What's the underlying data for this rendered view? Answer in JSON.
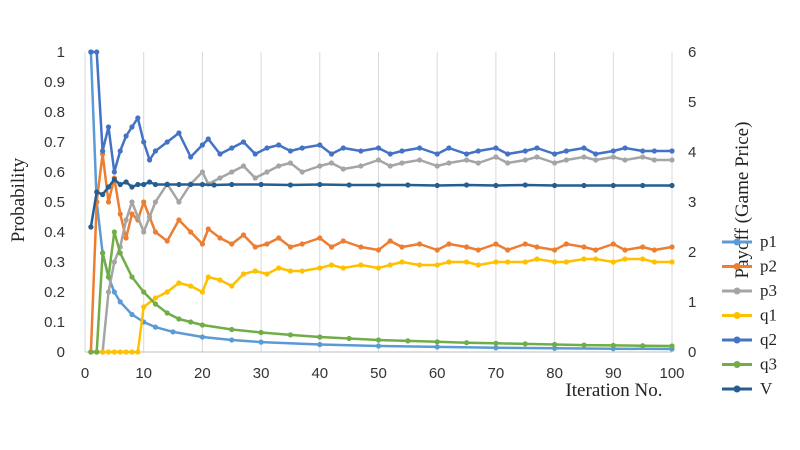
{
  "chart_data": {
    "type": "line",
    "xlabel": "Iteration No.",
    "ylabel_left": "Probability",
    "ylabel_right": "Payoff (Game Price)",
    "xlim": [
      0,
      100
    ],
    "ylim_left": [
      0,
      1
    ],
    "ylim_right": [
      0,
      6
    ],
    "x_ticks": [
      "0",
      "10",
      "20",
      "30",
      "40",
      "50",
      "60",
      "70",
      "80",
      "90",
      "100"
    ],
    "y_left_ticks": [
      "0",
      "0.1",
      "0.2",
      "0.3",
      "0.4",
      "0.5",
      "0.6",
      "0.7",
      "0.8",
      "0.9",
      "1"
    ],
    "y_right_ticks": [
      "0",
      "1",
      "2",
      "3",
      "4",
      "5",
      "6"
    ],
    "grid": "vertical",
    "legend_position": "right",
    "series": [
      {
        "name": "p1",
        "axis": "left",
        "color": "#5b9bd5",
        "x": [
          1,
          2,
          3,
          4,
          5,
          6,
          8,
          10,
          12,
          15,
          20,
          25,
          30,
          40,
          50,
          60,
          70,
          80,
          90,
          100
        ],
        "y": [
          1,
          0.5,
          0.33,
          0.25,
          0.2,
          0.167,
          0.125,
          0.1,
          0.083,
          0.067,
          0.05,
          0.04,
          0.033,
          0.025,
          0.02,
          0.017,
          0.014,
          0.0125,
          0.011,
          0.01
        ]
      },
      {
        "name": "p2",
        "axis": "left",
        "color": "#ed7d31",
        "x": [
          1,
          2,
          3,
          4,
          5,
          6,
          7,
          8,
          9,
          10,
          11,
          12,
          14,
          16,
          18,
          20,
          21,
          23,
          25,
          27,
          29,
          31,
          33,
          35,
          37,
          40,
          42,
          44,
          47,
          50,
          52,
          54,
          57,
          60,
          62,
          65,
          67,
          70,
          72,
          75,
          77,
          80,
          82,
          85,
          87,
          90,
          92,
          95,
          97,
          100
        ],
        "y": [
          0,
          0.5,
          0.66,
          0.5,
          0.58,
          0.46,
          0.38,
          0.46,
          0.44,
          0.5,
          0.45,
          0.4,
          0.37,
          0.44,
          0.4,
          0.36,
          0.41,
          0.38,
          0.36,
          0.39,
          0.35,
          0.36,
          0.38,
          0.35,
          0.36,
          0.38,
          0.35,
          0.37,
          0.35,
          0.34,
          0.37,
          0.35,
          0.36,
          0.34,
          0.36,
          0.35,
          0.34,
          0.36,
          0.34,
          0.36,
          0.35,
          0.34,
          0.36,
          0.35,
          0.34,
          0.36,
          0.34,
          0.35,
          0.34,
          0.35
        ]
      },
      {
        "name": "p3",
        "axis": "left",
        "color": "#a5a5a5",
        "x": [
          1,
          2,
          3,
          4,
          5,
          6,
          7,
          8,
          9,
          10,
          11,
          12,
          14,
          16,
          18,
          20,
          21,
          23,
          25,
          27,
          29,
          31,
          33,
          35,
          37,
          40,
          42,
          44,
          47,
          50,
          52,
          54,
          57,
          60,
          62,
          65,
          67,
          70,
          72,
          75,
          77,
          80,
          82,
          85,
          87,
          90,
          92,
          95,
          97,
          100
        ],
        "y": [
          0,
          0,
          0,
          0.2,
          0.3,
          0.35,
          0.44,
          0.5,
          0.45,
          0.4,
          0.45,
          0.5,
          0.56,
          0.5,
          0.56,
          0.6,
          0.56,
          0.58,
          0.6,
          0.62,
          0.58,
          0.6,
          0.62,
          0.63,
          0.6,
          0.62,
          0.63,
          0.61,
          0.62,
          0.64,
          0.62,
          0.63,
          0.64,
          0.62,
          0.63,
          0.64,
          0.63,
          0.65,
          0.63,
          0.64,
          0.65,
          0.63,
          0.64,
          0.65,
          0.64,
          0.65,
          0.64,
          0.65,
          0.64,
          0.64
        ]
      },
      {
        "name": "q1",
        "axis": "left",
        "color": "#ffc000",
        "x": [
          1,
          2,
          3,
          4,
          5,
          6,
          7,
          8,
          9,
          10,
          12,
          14,
          16,
          18,
          20,
          21,
          23,
          25,
          27,
          29,
          31,
          33,
          35,
          37,
          40,
          42,
          44,
          47,
          50,
          52,
          54,
          57,
          60,
          62,
          65,
          67,
          70,
          72,
          75,
          77,
          80,
          82,
          85,
          87,
          90,
          92,
          95,
          97,
          100
        ],
        "y": [
          0,
          0,
          0,
          0,
          0,
          0,
          0,
          0,
          0,
          0.15,
          0.18,
          0.2,
          0.23,
          0.22,
          0.2,
          0.25,
          0.24,
          0.22,
          0.26,
          0.27,
          0.26,
          0.28,
          0.27,
          0.27,
          0.28,
          0.29,
          0.28,
          0.29,
          0.28,
          0.29,
          0.3,
          0.29,
          0.29,
          0.3,
          0.3,
          0.29,
          0.3,
          0.3,
          0.3,
          0.31,
          0.3,
          0.3,
          0.31,
          0.31,
          0.3,
          0.31,
          0.31,
          0.3,
          0.3
        ]
      },
      {
        "name": "q2",
        "axis": "left",
        "color": "#4472c4",
        "x": [
          1,
          2,
          3,
          4,
          5,
          6,
          7,
          8,
          9,
          10,
          11,
          12,
          14,
          16,
          18,
          20,
          21,
          23,
          25,
          27,
          29,
          31,
          33,
          35,
          37,
          40,
          42,
          44,
          47,
          50,
          52,
          54,
          57,
          60,
          62,
          65,
          67,
          70,
          72,
          75,
          77,
          80,
          82,
          85,
          87,
          90,
          92,
          95,
          97,
          100
        ],
        "y": [
          1,
          1,
          0.67,
          0.75,
          0.6,
          0.67,
          0.72,
          0.75,
          0.78,
          0.7,
          0.64,
          0.67,
          0.7,
          0.73,
          0.65,
          0.69,
          0.71,
          0.66,
          0.68,
          0.7,
          0.66,
          0.68,
          0.69,
          0.67,
          0.68,
          0.69,
          0.66,
          0.68,
          0.67,
          0.68,
          0.66,
          0.67,
          0.68,
          0.66,
          0.68,
          0.66,
          0.67,
          0.68,
          0.66,
          0.67,
          0.68,
          0.66,
          0.67,
          0.68,
          0.66,
          0.67,
          0.68,
          0.67,
          0.67,
          0.67
        ]
      },
      {
        "name": "q3",
        "axis": "left",
        "color": "#70ad47",
        "x": [
          1,
          2,
          3,
          4,
          5,
          6,
          8,
          10,
          12,
          14,
          16,
          18,
          20,
          25,
          30,
          35,
          40,
          45,
          50,
          55,
          60,
          65,
          70,
          75,
          80,
          85,
          90,
          95,
          100
        ],
        "y": [
          0,
          0,
          0.33,
          0.25,
          0.4,
          0.33,
          0.25,
          0.2,
          0.16,
          0.13,
          0.11,
          0.1,
          0.09,
          0.075,
          0.065,
          0.057,
          0.05,
          0.045,
          0.04,
          0.037,
          0.034,
          0.031,
          0.029,
          0.027,
          0.025,
          0.023,
          0.022,
          0.021,
          0.02
        ]
      },
      {
        "name": "V",
        "axis": "right",
        "color": "#255e91",
        "x": [
          1,
          2,
          3,
          4,
          5,
          6,
          7,
          8,
          9,
          10,
          11,
          12,
          14,
          16,
          18,
          20,
          22,
          25,
          30,
          35,
          40,
          45,
          50,
          55,
          60,
          65,
          70,
          75,
          80,
          85,
          90,
          95,
          100
        ],
        "y": [
          2.5,
          3.2,
          3.15,
          3.3,
          3.45,
          3.35,
          3.4,
          3.3,
          3.35,
          3.35,
          3.4,
          3.35,
          3.35,
          3.35,
          3.35,
          3.35,
          3.34,
          3.35,
          3.35,
          3.34,
          3.35,
          3.34,
          3.34,
          3.34,
          3.33,
          3.34,
          3.33,
          3.34,
          3.33,
          3.33,
          3.33,
          3.33,
          3.33
        ]
      }
    ]
  }
}
